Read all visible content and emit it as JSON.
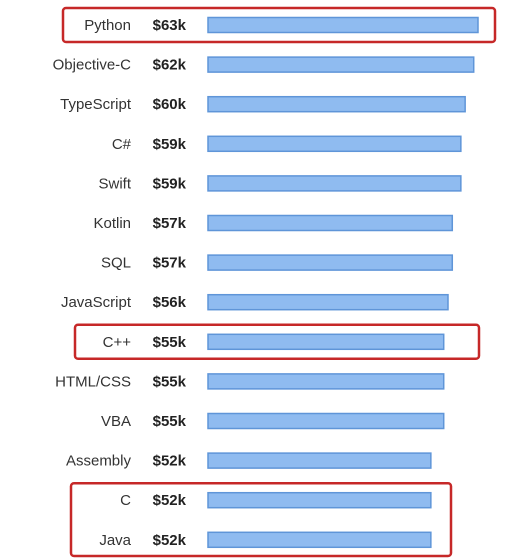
{
  "chart_data": {
    "type": "bar",
    "orientation": "horizontal",
    "categories": [
      "Python",
      "Objective-C",
      "TypeScript",
      "C#",
      "Swift",
      "Kotlin",
      "SQL",
      "JavaScript",
      "C++",
      "HTML/CSS",
      "VBA",
      "Assembly",
      "C",
      "Java"
    ],
    "values": [
      63,
      62,
      60,
      59,
      59,
      57,
      57,
      56,
      55,
      55,
      55,
      52,
      52,
      52
    ],
    "value_labels": [
      "$63k",
      "$62k",
      "$60k",
      "$59k",
      "$59k",
      "$57k",
      "$57k",
      "$56k",
      "$55k",
      "$55k",
      "$55k",
      "$52k",
      "$52k",
      "$52k"
    ],
    "title": "",
    "xlabel": "",
    "ylabel": "",
    "grid": false,
    "legend": "none",
    "bar_color": "#8fbbf0",
    "bar_border_color": "#5f95d8",
    "highlights": [
      {
        "categories": [
          "Python"
        ],
        "color": "#c62828"
      },
      {
        "categories": [
          "C++"
        ],
        "color": "#c62828"
      },
      {
        "categories": [
          "C",
          "Java"
        ],
        "color": "#c62828"
      }
    ]
  }
}
